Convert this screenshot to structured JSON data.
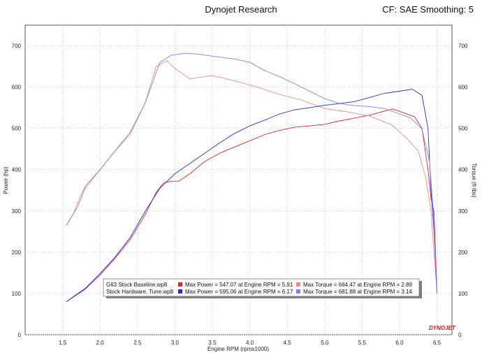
{
  "header": {
    "title": "Dynojet Research",
    "right_text": "CF: SAE Smoothing: 5"
  },
  "chart_data": {
    "type": "line",
    "xlabel": "Engine RPM (rpmx1000)",
    "ylabel_left": "Power (hp)",
    "ylabel_right": "Torque (ft-lbs)",
    "xlim": [
      1.0,
      6.7
    ],
    "ylim": [
      0,
      750
    ],
    "x_ticks": [
      "1.5",
      "2.0",
      "2.5",
      "3.0",
      "3.5",
      "4.0",
      "4.5",
      "5.0",
      "5.5",
      "6.0",
      "6.5"
    ],
    "y_ticks": [
      "0",
      "100",
      "200",
      "300",
      "400",
      "500",
      "600",
      "700"
    ],
    "grid": true,
    "logo_text": "DYNOJET",
    "series": [
      {
        "name": "G63 Stock Baseline.wp8",
        "measure": "power",
        "color": "#e02525",
        "x": [
          1.55,
          1.8,
          2.0,
          2.2,
          2.4,
          2.6,
          2.75,
          2.85,
          2.95,
          3.05,
          3.2,
          3.4,
          3.6,
          3.8,
          4.0,
          4.2,
          4.4,
          4.6,
          4.8,
          5.0,
          5.2,
          5.4,
          5.6,
          5.8,
          5.91,
          6.05,
          6.2,
          6.3,
          6.38,
          6.42,
          6.46,
          6.5
        ],
        "y": [
          80,
          110,
          145,
          185,
          230,
          290,
          345,
          368,
          372,
          372,
          390,
          420,
          440,
          455,
          470,
          485,
          495,
          503,
          506,
          510,
          518,
          525,
          532,
          542,
          547,
          538,
          528,
          500,
          400,
          330,
          300,
          100
        ]
      },
      {
        "name": "G63 Stock Baseline.wp8",
        "measure": "torque",
        "color": "#f08a8a",
        "x": [
          1.55,
          1.65,
          1.7,
          1.8,
          2.0,
          2.2,
          2.4,
          2.6,
          2.75,
          2.89,
          3.0,
          3.2,
          3.5,
          3.8,
          4.1,
          4.4,
          4.7,
          5.0,
          5.3,
          5.6,
          5.9,
          6.1,
          6.25,
          6.35,
          6.42,
          6.5
        ],
        "y": [
          265,
          295,
          320,
          360,
          400,
          445,
          485,
          560,
          650,
          664,
          645,
          620,
          628,
          615,
          600,
          582,
          568,
          548,
          540,
          530,
          508,
          475,
          445,
          380,
          300,
          100
        ]
      },
      {
        "name": "Stock Hardware, Tune.wp8",
        "measure": "power",
        "color": "#2a2adc",
        "x": [
          1.55,
          1.8,
          2.0,
          2.2,
          2.4,
          2.6,
          2.8,
          3.0,
          3.2,
          3.4,
          3.6,
          3.8,
          4.0,
          4.2,
          4.4,
          4.6,
          4.8,
          5.0,
          5.2,
          5.4,
          5.6,
          5.8,
          6.0,
          6.17,
          6.3,
          6.38,
          6.42,
          6.46,
          6.5
        ],
        "y": [
          80,
          112,
          148,
          188,
          235,
          298,
          355,
          390,
          415,
          440,
          465,
          488,
          506,
          520,
          535,
          545,
          550,
          556,
          560,
          565,
          575,
          585,
          590,
          595,
          580,
          500,
          350,
          250,
          100
        ]
      },
      {
        "name": "Stock Hardware, Tune.wp8",
        "measure": "torque",
        "color": "#8080ee",
        "x": [
          1.55,
          1.7,
          1.8,
          2.0,
          2.2,
          2.4,
          2.6,
          2.8,
          2.95,
          3.14,
          3.3,
          3.5,
          3.8,
          4.0,
          4.2,
          4.4,
          4.6,
          4.8,
          5.0,
          5.2,
          5.4,
          5.6,
          5.8,
          6.0,
          6.15,
          6.3,
          6.4,
          6.45,
          6.5
        ],
        "y": [
          265,
          310,
          355,
          400,
          445,
          490,
          560,
          660,
          677,
          682,
          680,
          675,
          668,
          660,
          640,
          625,
          608,
          590,
          572,
          560,
          555,
          553,
          548,
          535,
          525,
          498,
          420,
          300,
          100
        ]
      }
    ],
    "legend": [
      {
        "file": "G63 Stock Baseline.wp8",
        "power_color": "#e02525",
        "torque_color": "#f08a8a",
        "power_text": "Max Power = 547.07 at Engine RPM = 5.91",
        "torque_text": "Max Torque = 664.47 at Engine RPM = 2.89"
      },
      {
        "file": "Stock Hardware, Tune.wp8",
        "power_color": "#2a2adc",
        "torque_color": "#8080ee",
        "power_text": "Max Power = 595.06 at Engine RPM = 6.17",
        "torque_text": "Max Torque = 681.88 at Engine RPM = 3.14"
      }
    ],
    "legend_position": "bottom-center"
  }
}
